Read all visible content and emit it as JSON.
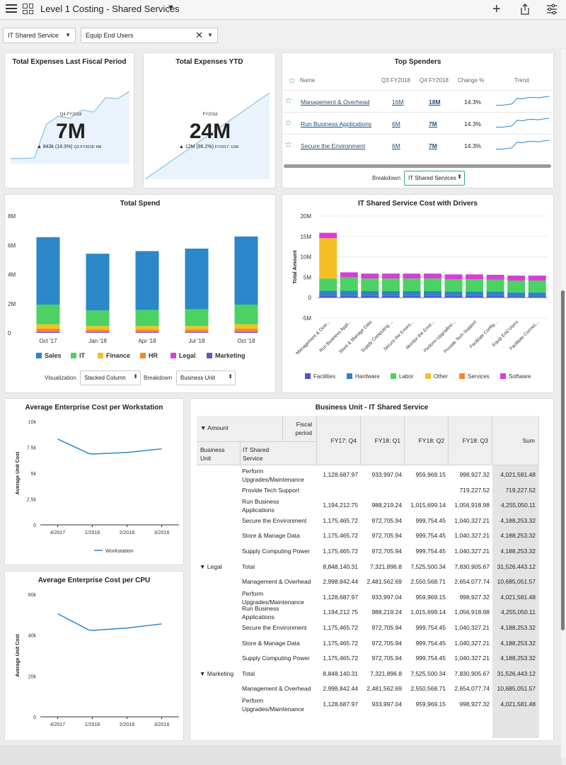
{
  "header": {
    "title": "Level 1 Costing - Shared Services",
    "icons": [
      "hamburger-icon",
      "grid-icon",
      "caret-down-icon",
      "plus-icon",
      "share-icon",
      "sliders-icon"
    ]
  },
  "filters": {
    "service_select": "IT Shared Service",
    "users_select": "Equip End Users"
  },
  "kpi_fiscal": {
    "title": "Total Expenses Last Fiscal Period",
    "period": "Q4 FY2018",
    "value": "7M",
    "change": "▲ 843k (14.3%)",
    "compare": "Q3 FY2018: 6M"
  },
  "kpi_ytd": {
    "title": "Total Expenses YTD",
    "period": "FY2018",
    "value": "24M",
    "change": "▲ 12M (96.2%)",
    "compare": "FY2017: 12M"
  },
  "top_spenders": {
    "title": "Top Spenders",
    "headers": {
      "name": "Name",
      "q3": "Q3 FY2018",
      "q4": "Q4 FY2018",
      "change": "Change %",
      "trend": "Trend"
    },
    "rows": [
      {
        "name": "Management & Overhead",
        "q3": "16M",
        "q4": "18M",
        "change": "14.3%"
      },
      {
        "name": "Run Business Applications",
        "q3": "6M",
        "q4": "7M",
        "change": "14.3%"
      },
      {
        "name": "Secure the Environment",
        "q3": "6M",
        "q4": "7M",
        "change": "14.3%"
      }
    ],
    "breakdown_label": "Breakdown",
    "breakdown_value": "IT Shared Services"
  },
  "total_spend": {
    "title": "Total Spend",
    "visualization_label": "Visualization",
    "visualization_value": "Stacked Column",
    "breakdown_label": "Breakdown",
    "breakdown_value": "Business Unit"
  },
  "drivers": {
    "title": "IT Shared Service Cost with Drivers"
  },
  "avg_workstation": {
    "title": "Average Enterprise Cost per Workstation"
  },
  "avg_cpu": {
    "title": "Average Enterprise Cost per CPU"
  },
  "pivot": {
    "title": "Business Unit - IT Shared Service",
    "h_amount": "▼ Amount",
    "h_fiscal": "Fiscal period",
    "h_bu": "Business Unit",
    "h_service": "IT Shared Service",
    "columns": [
      "FY17: Q4",
      "FY18: Q1",
      "FY18: Q2",
      "FY18: Q3",
      "Sum"
    ],
    "rows": [
      {
        "bu": "",
        "service": "Perform Upgrades/Maintenance",
        "v": [
          "1,128,687.97",
          "933,997.04",
          "959,969.15",
          "998,927.32",
          "4,021,581.48"
        ]
      },
      {
        "bu": "",
        "service": "Provide Tech Support",
        "v": [
          "",
          "",
          "",
          "719,227.52",
          "719,227.52"
        ]
      },
      {
        "bu": "",
        "service": "Run Business Applications",
        "v": [
          "1,194,212.75",
          "988,219.24",
          "1,015,699.14",
          "1,056,918.98",
          "4,255,050.11"
        ]
      },
      {
        "bu": "",
        "service": "Secure the Environment",
        "v": [
          "1,175,465.72",
          "972,705.94",
          "999,754.45",
          "1,040,327.21",
          "4,188,253.32"
        ]
      },
      {
        "bu": "",
        "service": "Store & Manage Data",
        "v": [
          "1,175,465.72",
          "972,705.94",
          "999,754.45",
          "1,040,327.21",
          "4,188,253.32"
        ]
      },
      {
        "bu": "",
        "service": "Supply Computing Power",
        "v": [
          "1,175,465.72",
          "972,705.94",
          "999,754.45",
          "1,040,327.21",
          "4,188,253.32"
        ]
      },
      {
        "bu": "▼ Legal",
        "service": "Total",
        "v": [
          "8,848,140.31",
          "7,321,896.8",
          "7,525,500.34",
          "7,830,905.67",
          "31,526,443.12"
        ]
      },
      {
        "bu": "",
        "service": "Management & Overhead",
        "v": [
          "2,998,842.44",
          "2,481,562.69",
          "2,550,568.71",
          "2,654,077.74",
          "10,685,051.57"
        ]
      },
      {
        "bu": "",
        "service": "Perform Upgrades/Maintenance",
        "v": [
          "1,128,687.97",
          "933,997.04",
          "959,969.15",
          "998,927.32",
          "4,021,581.48"
        ]
      },
      {
        "bu": "",
        "service": "Run Business Applications",
        "v": [
          "1,194,212.75",
          "988,219.24",
          "1,015,699.14",
          "1,056,918.98",
          "4,255,050.11"
        ]
      },
      {
        "bu": "",
        "service": "Secure the Environment",
        "v": [
          "1,175,465.72",
          "972,705.94",
          "999,754.45",
          "1,040,327.21",
          "4,188,253.32"
        ]
      },
      {
        "bu": "",
        "service": "Store & Manage Data",
        "v": [
          "1,175,465.72",
          "972,705.94",
          "999,754.45",
          "1,040,327.21",
          "4,188,253.32"
        ]
      },
      {
        "bu": "",
        "service": "Supply Computing Power",
        "v": [
          "1,175,465.72",
          "972,705.94",
          "999,754.45",
          "1,040,327.21",
          "4,188,253.32"
        ]
      },
      {
        "bu": "▼ Marketing",
        "service": "Total",
        "v": [
          "8,848,140.31",
          "7,321,896.8",
          "7,525,500.34",
          "7,830,905.67",
          "31,526,443.12"
        ]
      },
      {
        "bu": "",
        "service": "Management & Overhead",
        "v": [
          "2,998,842.44",
          "2,481,562.69",
          "2,550,568.71",
          "2,654,077.74",
          "10,685,051.57"
        ]
      },
      {
        "bu": "",
        "service": "Perform Upgrades/Maintenance",
        "v": [
          "1,128,687.97",
          "933,997.04",
          "959,969.15",
          "998,927.32",
          "4,021,581.48"
        ]
      }
    ]
  },
  "chart_data": [
    {
      "id": "total_spend",
      "type": "bar",
      "stacked": true,
      "categories": [
        "Oct '17",
        "Jan '18",
        "Apr '18",
        "Jul '18",
        "Oct '18"
      ],
      "yticks": [
        "0",
        "2M",
        "4M",
        "6M",
        "8M"
      ],
      "ylim": [
        0,
        8000000
      ],
      "legend_position": "bottom",
      "series": [
        {
          "name": "Marketing",
          "color": "#6059c9",
          "values": [
            50000,
            40000,
            40000,
            40000,
            50000
          ]
        },
        {
          "name": "Legal",
          "color": "#d63fd6",
          "values": [
            40000,
            30000,
            30000,
            30000,
            40000
          ]
        },
        {
          "name": "HR",
          "color": "#f08a2b",
          "values": [
            200000,
            150000,
            150000,
            150000,
            200000
          ]
        },
        {
          "name": "Finance",
          "color": "#f4c025",
          "values": [
            300000,
            250000,
            250000,
            250000,
            300000
          ]
        },
        {
          "name": "IT",
          "color": "#4cd263",
          "values": [
            1350000,
            1070000,
            1100000,
            1150000,
            1350000
          ]
        },
        {
          "name": "Sales",
          "color": "#2b87c8",
          "values": [
            4610000,
            3880000,
            4030000,
            4150000,
            4660000
          ]
        }
      ]
    },
    {
      "id": "drivers",
      "type": "bar",
      "stacked": true,
      "categories": [
        "Management & Over...",
        "Run Business Appl...",
        "Store & Manage Data",
        "Supply Computing ...",
        "Secure the Enviro...",
        "Monitor the Envir...",
        "Perform Upgrades/...",
        "Provide Tech Support",
        "Facilitate Config...",
        "Equip End Users",
        "Facilitate Connec..."
      ],
      "yticks": [
        "-5M",
        "0",
        "5M",
        "10M",
        "15M",
        "20M"
      ],
      "ylim": [
        -5000000,
        20000000
      ],
      "ylabel": "Total Amount",
      "legend_position": "bottom",
      "series": [
        {
          "name": "Facilities",
          "color": "#5353c9",
          "values": [
            500000,
            400000,
            400000,
            400000,
            400000,
            400000,
            400000,
            400000,
            400000,
            300000,
            300000
          ]
        },
        {
          "name": "Hardware",
          "color": "#2b87c8",
          "values": [
            1200000,
            1300000,
            1200000,
            1200000,
            1200000,
            1200000,
            1100000,
            1100000,
            1100000,
            1000000,
            1000000
          ]
        },
        {
          "name": "Labor",
          "color": "#4cd263",
          "values": [
            3000000,
            3300000,
            3100000,
            3100000,
            3100000,
            3100000,
            3000000,
            3000000,
            2900000,
            2900000,
            2900000
          ]
        },
        {
          "name": "Other",
          "color": "#f4c025",
          "values": [
            9800000,
            0,
            0,
            0,
            0,
            0,
            0,
            0,
            0,
            0,
            0
          ]
        },
        {
          "name": "Services",
          "color": "#f08a2b",
          "values": [
            100000,
            0,
            0,
            0,
            0,
            0,
            0,
            0,
            0,
            0,
            0
          ]
        },
        {
          "name": "Software",
          "color": "#d63fd6",
          "values": [
            1300000,
            1200000,
            1200000,
            1200000,
            1200000,
            1200000,
            1200000,
            1200000,
            1200000,
            1200000,
            1200000
          ]
        }
      ]
    },
    {
      "id": "avg_workstation",
      "type": "line",
      "categories": [
        "4/2017",
        "1/2018",
        "2/2018",
        "3/2018"
      ],
      "yticks": [
        "0",
        "2.5k",
        "5k",
        "7.5k",
        "10k"
      ],
      "ylim": [
        0,
        10000
      ],
      "ylabel": "Average Unit Cost",
      "legend_position": "bottom",
      "series": [
        {
          "name": "Workstation",
          "color": "#2b87c8",
          "x": [
            0,
            0.9,
            1,
            2,
            3
          ],
          "values": [
            8300,
            6900,
            6850,
            7000,
            7350
          ]
        }
      ]
    },
    {
      "id": "avg_cpu",
      "type": "line",
      "categories": [
        "4/2017",
        "1/2018",
        "2/2018",
        "3/2018"
      ],
      "yticks": [
        "0",
        "20k",
        "40k",
        "60k"
      ],
      "ylim": [
        0,
        60000
      ],
      "ylabel": "Average Unit Cost",
      "series": [
        {
          "color": "#2b87c8",
          "x": [
            0,
            0.9,
            1,
            2,
            3
          ],
          "values": [
            50500,
            42500,
            42300,
            43500,
            45500
          ]
        }
      ]
    },
    {
      "id": "kpi_fiscal_trend",
      "type": "area",
      "values": [
        0.5,
        0.5,
        0.55,
        3.8,
        4.6,
        4.4,
        5.2,
        5.0,
        6.4,
        6.3,
        7.0
      ]
    },
    {
      "id": "kpi_ytd_trend",
      "type": "area",
      "values": [
        0,
        1,
        2,
        3,
        4,
        5,
        6,
        7,
        8,
        9,
        10,
        11,
        12
      ]
    },
    {
      "id": "top_spender_trends",
      "type": "line",
      "series": [
        {
          "values": [
            0.3,
            0.3,
            0.35,
            0.4,
            0.85,
            0.8,
            0.9,
            0.92,
            0.88,
            0.95,
            1.0
          ]
        },
        {
          "values": [
            0.3,
            0.3,
            0.35,
            0.4,
            0.85,
            0.8,
            0.9,
            0.92,
            0.88,
            0.95,
            1.0
          ]
        },
        {
          "values": [
            0.3,
            0.3,
            0.35,
            0.4,
            0.85,
            0.8,
            0.9,
            0.92,
            0.88,
            0.95,
            1.0
          ]
        }
      ]
    }
  ]
}
